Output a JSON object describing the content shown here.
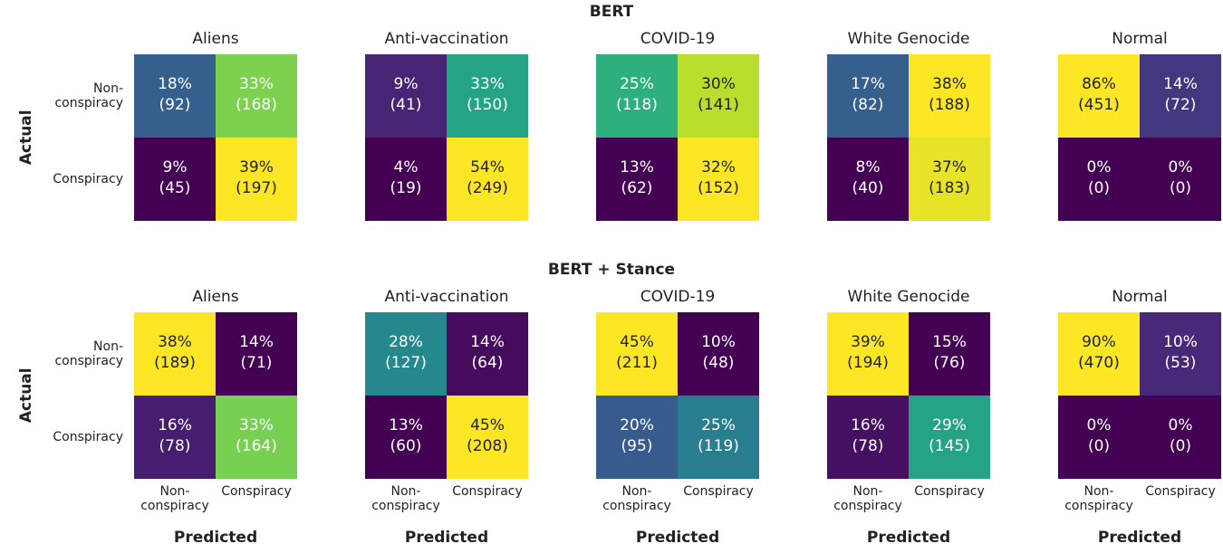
{
  "colormap": [
    "#440154",
    "#482878",
    "#3e4989",
    "#31688e",
    "#26828e",
    "#1f9e89",
    "#35b779",
    "#6ece58",
    "#b5de2b",
    "#fde725"
  ],
  "chart_data": [
    {
      "type": "heatmap_row",
      "title": "BERT",
      "ylabel": "Actual",
      "y_categories": [
        "Non-\nconspiracy",
        "Conspiracy"
      ],
      "panels": [
        {
          "title": "Aliens",
          "values": [
            [
              18,
              33
            ],
            [
              9,
              39
            ]
          ],
          "value_labels": [
            [
              "18%",
              "33%"
            ],
            [
              "9%",
              "39%"
            ]
          ],
          "counts": [
            [
              92,
              168
            ],
            [
              45,
              197
            ]
          ],
          "count_labels": [
            [
              "(92)",
              "(168)"
            ],
            [
              "(45)",
              "(197)"
            ]
          ]
        },
        {
          "title": "Anti-vaccination",
          "values": [
            [
              9,
              33
            ],
            [
              4,
              54
            ]
          ],
          "value_labels": [
            [
              "9%",
              "33%"
            ],
            [
              "4%",
              "54%"
            ]
          ],
          "counts": [
            [
              41,
              150
            ],
            [
              19,
              249
            ]
          ],
          "count_labels": [
            [
              "(41)",
              "(150)"
            ],
            [
              "(19)",
              "(249)"
            ]
          ]
        },
        {
          "title": "COVID-19",
          "values": [
            [
              25,
              30
            ],
            [
              13,
              32
            ]
          ],
          "value_labels": [
            [
              "25%",
              "30%"
            ],
            [
              "13%",
              "32%"
            ]
          ],
          "counts": [
            [
              118,
              141
            ],
            [
              62,
              152
            ]
          ],
          "count_labels": [
            [
              "(118)",
              "(141)"
            ],
            [
              "(62)",
              "(152)"
            ]
          ]
        },
        {
          "title": "White Genocide",
          "values": [
            [
              17,
              38
            ],
            [
              8,
              37
            ]
          ],
          "value_labels": [
            [
              "17%",
              "38%"
            ],
            [
              "8%",
              "37%"
            ]
          ],
          "counts": [
            [
              82,
              188
            ],
            [
              40,
              183
            ]
          ],
          "count_labels": [
            [
              "(82)",
              "(188)"
            ],
            [
              "(40)",
              "(183)"
            ]
          ]
        },
        {
          "title": "Normal",
          "values": [
            [
              86,
              14
            ],
            [
              0,
              0
            ]
          ],
          "value_labels": [
            [
              "86%",
              "14%"
            ],
            [
              "0%",
              "0%"
            ]
          ],
          "counts": [
            [
              451,
              72
            ],
            [
              0,
              0
            ]
          ],
          "count_labels": [
            [
              "(451)",
              "(72)"
            ],
            [
              "(0)",
              "(0)"
            ]
          ]
        }
      ]
    },
    {
      "type": "heatmap_row",
      "title": "BERT + Stance",
      "ylabel": "Actual",
      "xlabel": "Predicted",
      "y_categories": [
        "Non-\nconspiracy",
        "Conspiracy"
      ],
      "x_categories": [
        "Non-\nconspiracy",
        "Conspiracy"
      ],
      "panels": [
        {
          "title": "Aliens",
          "values": [
            [
              38,
              14
            ],
            [
              16,
              33
            ]
          ],
          "value_labels": [
            [
              "38%",
              "14%"
            ],
            [
              "16%",
              "33%"
            ]
          ],
          "counts": [
            [
              189,
              71
            ],
            [
              78,
              164
            ]
          ],
          "count_labels": [
            [
              "(189)",
              "(71)"
            ],
            [
              "(78)",
              "(164)"
            ]
          ]
        },
        {
          "title": "Anti-vaccination",
          "values": [
            [
              28,
              14
            ],
            [
              13,
              45
            ]
          ],
          "value_labels": [
            [
              "28%",
              "14%"
            ],
            [
              "13%",
              "45%"
            ]
          ],
          "counts": [
            [
              127,
              64
            ],
            [
              60,
              208
            ]
          ],
          "count_labels": [
            [
              "(127)",
              "(64)"
            ],
            [
              "(60)",
              "(208)"
            ]
          ]
        },
        {
          "title": "COVID-19",
          "values": [
            [
              45,
              10
            ],
            [
              20,
              25
            ]
          ],
          "value_labels": [
            [
              "45%",
              "10%"
            ],
            [
              "20%",
              "25%"
            ]
          ],
          "counts": [
            [
              211,
              48
            ],
            [
              95,
              119
            ]
          ],
          "count_labels": [
            [
              "(211)",
              "(48)"
            ],
            [
              "(95)",
              "(119)"
            ]
          ]
        },
        {
          "title": "White Genocide",
          "values": [
            [
              39,
              15
            ],
            [
              16,
              29
            ]
          ],
          "value_labels": [
            [
              "39%",
              "15%"
            ],
            [
              "16%",
              "29%"
            ]
          ],
          "counts": [
            [
              194,
              76
            ],
            [
              78,
              145
            ]
          ],
          "count_labels": [
            [
              "(194)",
              "(76)"
            ],
            [
              "(78)",
              "(145)"
            ]
          ]
        },
        {
          "title": "Normal",
          "values": [
            [
              90,
              10
            ],
            [
              0,
              0
            ]
          ],
          "value_labels": [
            [
              "90%",
              "10%"
            ],
            [
              "0%",
              "0%"
            ]
          ],
          "counts": [
            [
              470,
              53
            ],
            [
              0,
              0
            ]
          ],
          "count_labels": [
            [
              "(470)",
              "(53)"
            ],
            [
              "(0)",
              "(0)"
            ]
          ]
        }
      ]
    }
  ]
}
